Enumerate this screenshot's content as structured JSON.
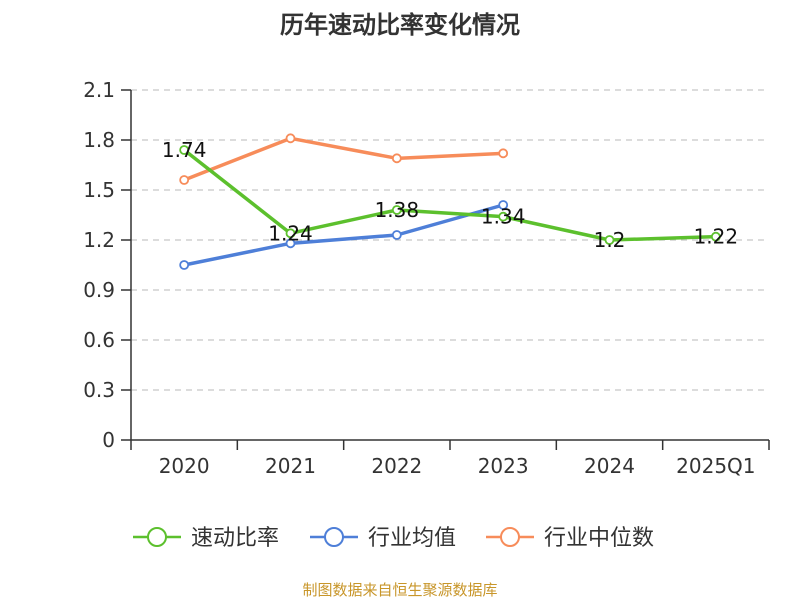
{
  "chart_data": {
    "type": "line",
    "title": "历年速动比率变化情况",
    "categories": [
      "2020",
      "2021",
      "2022",
      "2023",
      "2024",
      "2025Q1"
    ],
    "ylim": [
      0,
      2.1
    ],
    "yticks": [
      "0",
      "0.3",
      "0.6",
      "0.9",
      "1.2",
      "1.5",
      "1.8",
      "2.1"
    ],
    "grid": true,
    "legend_position": "bottom",
    "series": [
      {
        "name": "速动比率",
        "color": "#5cc02d",
        "values": [
          1.74,
          1.24,
          1.38,
          1.34,
          1.2,
          1.22
        ],
        "labels": [
          "1.74",
          "1.24",
          "1.38",
          "1.34",
          "1.2",
          "1.22"
        ]
      },
      {
        "name": "行业均值",
        "color": "#4e7fd8",
        "values": [
          1.05,
          1.18,
          1.23,
          1.41,
          null,
          null
        ]
      },
      {
        "name": "行业中位数",
        "color": "#f78c5a",
        "values": [
          1.56,
          1.81,
          1.69,
          1.72,
          null,
          null
        ]
      }
    ],
    "source": "制图数据来自恒生聚源数据库"
  }
}
